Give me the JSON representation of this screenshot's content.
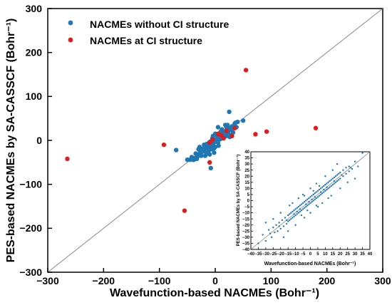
{
  "chart_data": [
    {
      "type": "scatter",
      "title": "",
      "xlabel": "Wavefunction-based NACMEs (Bohr⁻¹)",
      "ylabel": "PES-based NACMEs by SA-CASSCF (Bohr⁻¹)",
      "xlim": [
        -300,
        300
      ],
      "ylim": [
        -300,
        300
      ],
      "xticks": [
        -300,
        -200,
        -100,
        0,
        100,
        200,
        300
      ],
      "yticks": [
        -300,
        -200,
        -100,
        0,
        100,
        200,
        300
      ],
      "grid": false,
      "legend_position": "top-left",
      "diagonal": "y = x",
      "series": [
        {
          "name": "NACMEs without CI structure",
          "color": "#1f77b4",
          "points": [
            [
              -5,
              -8
            ],
            [
              -2,
              -4
            ],
            [
              0,
              0
            ],
            [
              2,
              3
            ],
            [
              4,
              5
            ],
            [
              6,
              6
            ],
            [
              -4,
              -3
            ],
            [
              -8,
              -10
            ],
            [
              8,
              9
            ],
            [
              10,
              12
            ],
            [
              12,
              10
            ],
            [
              -10,
              -12
            ],
            [
              -12,
              -15
            ],
            [
              14,
              15
            ],
            [
              16,
              18
            ],
            [
              -15,
              -17
            ],
            [
              18,
              16
            ],
            [
              -18,
              -20
            ],
            [
              20,
              22
            ],
            [
              22,
              20
            ],
            [
              -20,
              -22
            ],
            [
              -22,
              -24
            ],
            [
              24,
              22
            ],
            [
              25,
              28
            ],
            [
              -25,
              -28
            ],
            [
              28,
              25
            ],
            [
              30,
              32
            ],
            [
              -28,
              -30
            ],
            [
              32,
              30
            ],
            [
              -30,
              -35
            ],
            [
              35,
              38
            ],
            [
              -33,
              -42
            ],
            [
              38,
              30
            ],
            [
              -35,
              -40
            ],
            [
              40,
              42
            ],
            [
              -38,
              -44
            ],
            [
              -40,
              -44
            ],
            [
              -42,
              -38
            ],
            [
              5,
              -5
            ],
            [
              -5,
              5
            ],
            [
              3,
              12
            ],
            [
              -3,
              -12
            ],
            [
              15,
              8
            ],
            [
              -15,
              -8
            ],
            [
              20,
              10
            ],
            [
              -20,
              -10
            ],
            [
              10,
              20
            ],
            [
              -10,
              -20
            ],
            [
              -45,
              -44
            ],
            [
              -50,
              -44
            ],
            [
              -70,
              -22
            ],
            [
              -8,
              -63
            ],
            [
              25,
              65
            ],
            [
              50,
              45
            ],
            [
              15,
              5
            ],
            [
              7,
              2
            ],
            [
              -7,
              -2
            ],
            [
              0,
              -15
            ],
            [
              0,
              15
            ],
            [
              -12,
              -25
            ],
            [
              12,
              25
            ],
            [
              -18,
              -35
            ],
            [
              18,
              35
            ],
            [
              -25,
              -35
            ],
            [
              -22,
              -25
            ],
            [
              -30,
              -20
            ],
            [
              -15,
              -25
            ],
            [
              -2,
              -18
            ],
            [
              -28,
              -15
            ],
            [
              -35,
              -30
            ],
            [
              28,
              12
            ],
            [
              32,
              18
            ],
            [
              26,
              8
            ],
            [
              34,
              28
            ],
            [
              20,
              30
            ],
            [
              22,
              35
            ],
            [
              36,
              40
            ],
            [
              -4,
              10
            ],
            [
              6,
              -12
            ],
            [
              9,
              3
            ],
            [
              -9,
              -3
            ],
            [
              11,
              4
            ],
            [
              -11,
              -5
            ],
            [
              13,
              8
            ],
            [
              -13,
              -9
            ],
            [
              17,
              12
            ],
            [
              -17,
              -13
            ],
            [
              19,
              14
            ],
            [
              -19,
              -15
            ],
            [
              -6,
              -20
            ],
            [
              -16,
              -30
            ],
            [
              23,
              18
            ],
            [
              -23,
              -19
            ],
            [
              27,
              24
            ],
            [
              -27,
              -25
            ],
            [
              29,
              26
            ],
            [
              -2,
              -28
            ],
            [
              -10,
              -32
            ],
            [
              -24,
              -26
            ],
            [
              5,
              30
            ]
          ]
        },
        {
          "name": "NACMEs at CI structure",
          "color": "#e31a1c",
          "points": [
            [
              -265,
              -42
            ],
            [
              -92,
              -10
            ],
            [
              -55,
              -160
            ],
            [
              -10,
              -50
            ],
            [
              -10,
              -5
            ],
            [
              -5,
              2
            ],
            [
              5,
              15
            ],
            [
              10,
              12
            ],
            [
              15,
              5
            ],
            [
              20,
              22
            ],
            [
              30,
              10
            ],
            [
              35,
              28
            ],
            [
              55,
              160
            ],
            [
              72,
              14
            ],
            [
              92,
              20
            ],
            [
              180,
              28
            ]
          ]
        }
      ]
    },
    {
      "type": "scatter",
      "title": "",
      "xlabel": "Wavefunction-based NACMEs (Bohr⁻¹)",
      "ylabel": "PES-based NACMEs by SA-CASSCF (Bohr⁻¹)",
      "xlim": [
        -40,
        40
      ],
      "ylim": [
        -40,
        40
      ],
      "xticks": [
        -40,
        -35,
        -30,
        -25,
        -20,
        -15,
        -10,
        -5,
        0,
        5,
        10,
        15,
        20,
        25,
        30,
        35,
        40
      ],
      "yticks": [
        -40,
        -35,
        -30,
        -25,
        -20,
        -15,
        -10,
        -5,
        0,
        5,
        10,
        15,
        20,
        25,
        30,
        35,
        40
      ],
      "grid": false,
      "diagonal": "y = x",
      "series": [
        {
          "color": "#1f77b4",
          "points": [
            [
              -32,
              -28
            ],
            [
              -30,
              -33
            ],
            [
              -28,
              -24
            ],
            [
              -26,
              -30
            ],
            [
              -25,
              -22
            ],
            [
              -24,
              -26
            ],
            [
              -23,
              -20
            ],
            [
              -22,
              -25
            ],
            [
              -21,
              -18
            ],
            [
              -20,
              -23
            ],
            [
              -19,
              -16
            ],
            [
              -18,
              -21
            ],
            [
              -17,
              -14
            ],
            [
              -16,
              -19
            ],
            [
              -15,
              -12
            ],
            [
              -15,
              -17
            ],
            [
              -14,
              -11
            ],
            [
              -14,
              -16
            ],
            [
              -13,
              -10
            ],
            [
              -13,
              -15
            ],
            [
              -12,
              -9
            ],
            [
              -12,
              -14
            ],
            [
              -11,
              -8
            ],
            [
              -11,
              -13
            ],
            [
              -10,
              -7
            ],
            [
              -10,
              -12
            ],
            [
              -9,
              -6
            ],
            [
              -9,
              -11
            ],
            [
              -8,
              -5
            ],
            [
              -8,
              -10
            ],
            [
              -7,
              -4
            ],
            [
              -7,
              -9
            ],
            [
              -6,
              -3
            ],
            [
              -6,
              -8
            ],
            [
              -5,
              -2
            ],
            [
              -5,
              -7
            ],
            [
              -4,
              -1
            ],
            [
              -4,
              -6
            ],
            [
              -3,
              0
            ],
            [
              -3,
              -5
            ],
            [
              -2,
              1
            ],
            [
              -2,
              -4
            ],
            [
              -1,
              2
            ],
            [
              -1,
              -3
            ],
            [
              0,
              3
            ],
            [
              0,
              -2
            ],
            [
              1,
              4
            ],
            [
              1,
              -1
            ],
            [
              2,
              5
            ],
            [
              2,
              0
            ],
            [
              3,
              6
            ],
            [
              3,
              1
            ],
            [
              4,
              7
            ],
            [
              4,
              2
            ],
            [
              5,
              8
            ],
            [
              5,
              3
            ],
            [
              6,
              9
            ],
            [
              6,
              4
            ],
            [
              7,
              10
            ],
            [
              7,
              5
            ],
            [
              8,
              11
            ],
            [
              8,
              6
            ],
            [
              9,
              12
            ],
            [
              9,
              7
            ],
            [
              10,
              13
            ],
            [
              10,
              8
            ],
            [
              11,
              14
            ],
            [
              11,
              9
            ],
            [
              12,
              15
            ],
            [
              12,
              10
            ],
            [
              13,
              16
            ],
            [
              13,
              11
            ],
            [
              14,
              17
            ],
            [
              14,
              12
            ],
            [
              15,
              18
            ],
            [
              15,
              13
            ],
            [
              16,
              19
            ],
            [
              16,
              14
            ],
            [
              17,
              20
            ],
            [
              17,
              15
            ],
            [
              18,
              21
            ],
            [
              18,
              16
            ],
            [
              19,
              22
            ],
            [
              19,
              17
            ],
            [
              20,
              23
            ],
            [
              20,
              18
            ],
            [
              22,
              25
            ],
            [
              22,
              20
            ],
            [
              24,
              27
            ],
            [
              24,
              22
            ],
            [
              26,
              28
            ],
            [
              26,
              24
            ],
            [
              28,
              26
            ],
            [
              30,
              32
            ],
            [
              32,
              28
            ],
            [
              -35,
              -35
            ],
            [
              35,
              39
            ],
            [
              -20,
              -10
            ],
            [
              20,
              10
            ],
            [
              -10,
              -20
            ],
            [
              10,
              20
            ],
            [
              -25,
              -15
            ],
            [
              25,
              15
            ],
            [
              -15,
              -25
            ],
            [
              15,
              25
            ],
            [
              -5,
              5
            ],
            [
              5,
              -5
            ],
            [
              0,
              10
            ],
            [
              0,
              -10
            ],
            [
              -18,
              -30
            ],
            [
              18,
              30
            ],
            [
              -30,
              -18
            ],
            [
              30,
              18
            ],
            [
              -8,
              2
            ],
            [
              8,
              -2
            ],
            [
              -2,
              -8
            ],
            [
              2,
              8
            ],
            [
              -12,
              -2
            ],
            [
              12,
              2
            ],
            [
              -6,
              -12
            ],
            [
              6,
              12
            ],
            [
              -3,
              -3
            ],
            [
              3,
              3
            ],
            [
              -1,
              -1
            ],
            [
              1,
              1
            ],
            [
              -7,
              -7
            ],
            [
              7,
              7
            ],
            [
              -9,
              -9
            ],
            [
              9,
              9
            ],
            [
              -11,
              -11
            ],
            [
              11,
              11
            ],
            [
              -16,
              -16
            ],
            [
              16,
              16
            ],
            [
              -21,
              -21
            ],
            [
              21,
              21
            ],
            [
              -27,
              -27
            ],
            [
              27,
              27
            ],
            [
              -4,
              4
            ],
            [
              4,
              -4
            ],
            [
              -14,
              -4
            ],
            [
              14,
              4
            ],
            [
              -4,
              -14
            ],
            [
              4,
              14
            ]
          ]
        }
      ]
    }
  ],
  "legend": [
    {
      "label": "NACMEs without CI structure",
      "color": "#1f77b4"
    },
    {
      "label": "NACMEs at CI structure",
      "color": "#e31a1c"
    }
  ],
  "axis_titles": {
    "x": "Wavefunction-based NACMEs (Bohr⁻¹)",
    "y": "PES-based NACMEs by SA-CASSCF (Bohr⁻¹)"
  }
}
